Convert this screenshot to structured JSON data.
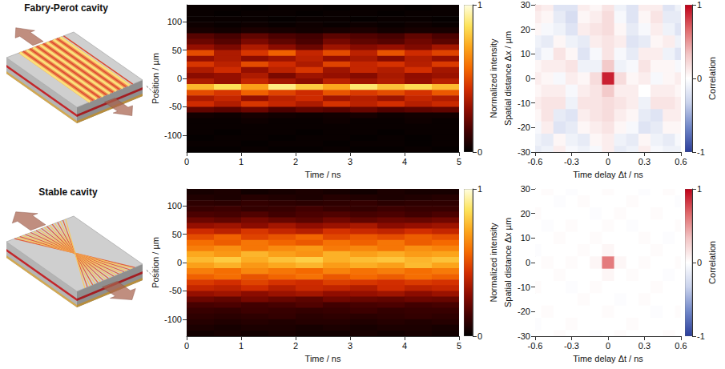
{
  "diagrams": [
    {
      "title": "Fabry-Perot cavity"
    },
    {
      "title": "Stable cavity"
    }
  ],
  "chart_data": [
    {
      "type": "heatmap",
      "x_label": "Time / ns",
      "y_label": "Position / µm",
      "xlim": [
        0,
        5
      ],
      "xticks": [
        0,
        1,
        2,
        3,
        4,
        5
      ],
      "ylim": [
        -130,
        130
      ],
      "yticks": [
        -100,
        -50,
        0,
        50,
        100
      ],
      "colorbar_label": "Normalized intensity",
      "colorbar_lim": [
        0,
        1
      ],
      "colorbar_ticks": [
        0,
        1
      ],
      "x": [
        0.25,
        0.75,
        1.25,
        1.75,
        2.25,
        2.75,
        3.25,
        3.75,
        4.25,
        4.75
      ],
      "y": [
        125,
        115,
        105,
        95,
        85,
        75,
        65,
        55,
        45,
        35,
        25,
        15,
        5,
        -5,
        -15,
        -25,
        -35,
        -45,
        -55,
        -65,
        -75,
        -85,
        -95,
        -105,
        -115,
        -125
      ],
      "z": [
        [
          0.02,
          0.02,
          0.01,
          0.02,
          0.02,
          0.01,
          0.02,
          0.02,
          0.01,
          0.02
        ],
        [
          0.02,
          0.01,
          0.02,
          0.02,
          0.01,
          0.02,
          0.02,
          0.01,
          0.02,
          0.02
        ],
        [
          0.02,
          0.02,
          0.02,
          0.01,
          0.02,
          0.02,
          0.01,
          0.02,
          0.02,
          0.01
        ],
        [
          0.03,
          0.02,
          0.03,
          0.02,
          0.03,
          0.02,
          0.03,
          0.02,
          0.03,
          0.02
        ],
        [
          0.05,
          0.04,
          0.06,
          0.05,
          0.04,
          0.05,
          0.06,
          0.04,
          0.05,
          0.05
        ],
        [
          0.18,
          0.15,
          0.2,
          0.16,
          0.14,
          0.19,
          0.17,
          0.15,
          0.2,
          0.16
        ],
        [
          0.22,
          0.18,
          0.25,
          0.2,
          0.16,
          0.24,
          0.2,
          0.18,
          0.23,
          0.19
        ],
        [
          0.3,
          0.25,
          0.35,
          0.28,
          0.22,
          0.32,
          0.27,
          0.3,
          0.26,
          0.33
        ],
        [
          0.5,
          0.35,
          0.45,
          0.55,
          0.4,
          0.5,
          0.38,
          0.52,
          0.42,
          0.48
        ],
        [
          0.3,
          0.35,
          0.28,
          0.32,
          0.38,
          0.3,
          0.34,
          0.27,
          0.36,
          0.3
        ],
        [
          0.45,
          0.38,
          0.5,
          0.42,
          0.35,
          0.48,
          0.4,
          0.44,
          0.37,
          0.46
        ],
        [
          0.35,
          0.42,
          0.3,
          0.38,
          0.45,
          0.32,
          0.4,
          0.36,
          0.43,
          0.33
        ],
        [
          0.28,
          0.3,
          0.35,
          0.25,
          0.32,
          0.3,
          0.27,
          0.34,
          0.29,
          0.31
        ],
        [
          0.35,
          0.3,
          0.4,
          0.33,
          0.28,
          0.38,
          0.32,
          0.36,
          0.3,
          0.37
        ],
        [
          0.75,
          0.85,
          0.7,
          0.9,
          0.8,
          0.72,
          0.88,
          0.78,
          0.84,
          0.76
        ],
        [
          0.5,
          0.45,
          0.55,
          0.48,
          0.42,
          0.52,
          0.46,
          0.5,
          0.44,
          0.53
        ],
        [
          0.35,
          0.4,
          0.3,
          0.38,
          0.42,
          0.33,
          0.37,
          0.32,
          0.4,
          0.36
        ],
        [
          0.42,
          0.36,
          0.45,
          0.4,
          0.35,
          0.44,
          0.38,
          0.43,
          0.37,
          0.41
        ],
        [
          0.2,
          0.18,
          0.22,
          0.16,
          0.2,
          0.18,
          0.21,
          0.17,
          0.19,
          0.2
        ],
        [
          0.04,
          0.03,
          0.05,
          0.04,
          0.03,
          0.04,
          0.05,
          0.03,
          0.04,
          0.04
        ],
        [
          0.02,
          0.02,
          0.03,
          0.02,
          0.02,
          0.03,
          0.02,
          0.02,
          0.03,
          0.02
        ],
        [
          0.02,
          0.02,
          0.02,
          0.02,
          0.02,
          0.02,
          0.02,
          0.02,
          0.02,
          0.02
        ],
        [
          0.02,
          0.01,
          0.02,
          0.02,
          0.01,
          0.02,
          0.02,
          0.01,
          0.02,
          0.02
        ],
        [
          0.01,
          0.02,
          0.02,
          0.01,
          0.02,
          0.02,
          0.01,
          0.02,
          0.01,
          0.02
        ],
        [
          0.02,
          0.02,
          0.01,
          0.02,
          0.02,
          0.01,
          0.02,
          0.02,
          0.01,
          0.02
        ],
        [
          0.01,
          0.01,
          0.02,
          0.01,
          0.01,
          0.02,
          0.01,
          0.01,
          0.02,
          0.01
        ]
      ]
    },
    {
      "type": "heatmap",
      "x_label": "Time delay Δt / ns",
      "y_label": "Spatial distance Δx / µm",
      "xlim": [
        -0.6,
        0.6
      ],
      "xticks": [
        -0.6,
        -0.3,
        0,
        0.3,
        0.6
      ],
      "ylim": [
        -30,
        30
      ],
      "yticks": [
        -30,
        -20,
        -10,
        0,
        10,
        20,
        30
      ],
      "colorbar_label": "Correlation",
      "colorbar_lim": [
        -1,
        1
      ],
      "colorbar_ticks": [
        -1,
        0,
        1
      ],
      "x": [
        -0.6,
        -0.5,
        -0.4,
        -0.3,
        -0.2,
        -0.1,
        0,
        0.1,
        0.2,
        0.3,
        0.4,
        0.5,
        0.6
      ],
      "y": [
        30,
        25,
        20,
        15,
        10,
        5,
        0,
        -5,
        -10,
        -15,
        -20,
        -25,
        -30
      ],
      "z": [
        [
          0.15,
          0.1,
          -0.2,
          -0.2,
          0.1,
          0.05,
          0.15,
          -0.1,
          -0.2,
          0.1,
          0.1,
          -0.2,
          -0.1
        ],
        [
          0.1,
          0.05,
          -0.15,
          -0.25,
          0.05,
          0.1,
          0.2,
          -0.05,
          -0.2,
          0.05,
          0.15,
          -0.15,
          -0.15
        ],
        [
          0.05,
          -0.05,
          -0.1,
          -0.2,
          0.1,
          0.15,
          0.2,
          0.05,
          -0.15,
          -0.05,
          0.1,
          -0.1,
          -0.2
        ],
        [
          -0.1,
          -0.15,
          0.05,
          -0.1,
          -0.15,
          0.1,
          0.15,
          0.1,
          -0.2,
          -0.15,
          0.05,
          0.1,
          -0.1
        ],
        [
          -0.15,
          -0.05,
          0.15,
          0.05,
          -0.2,
          -0.05,
          0.15,
          -0.05,
          -0.15,
          0.1,
          0.1,
          -0.1,
          -0.2
        ],
        [
          0.05,
          0.1,
          0.1,
          0.15,
          -0.1,
          -0.1,
          0.3,
          -0.1,
          -0.05,
          0.15,
          0.05,
          0.05,
          -0.05
        ],
        [
          0.1,
          0.05,
          -0.05,
          0.1,
          0.05,
          0.2,
          0.9,
          0.2,
          0.05,
          0.1,
          -0.05,
          0.05,
          0.1
        ],
        [
          0.05,
          0.1,
          0.1,
          -0.05,
          0.1,
          0.15,
          0.3,
          0.1,
          0.1,
          0.0,
          0.1,
          0.1,
          0.05
        ],
        [
          0.1,
          0.15,
          0.15,
          -0.1,
          0.15,
          0.15,
          0.2,
          0.15,
          0.1,
          -0.1,
          0.15,
          0.15,
          0.1
        ],
        [
          0.05,
          0.15,
          -0.15,
          -0.2,
          0.1,
          0.15,
          0.2,
          0.1,
          0.05,
          -0.15,
          -0.2,
          0.1,
          0.1
        ],
        [
          -0.05,
          0.1,
          -0.2,
          -0.15,
          0.05,
          0.1,
          0.15,
          0.05,
          -0.05,
          -0.2,
          -0.15,
          0.05,
          0.05
        ],
        [
          -0.1,
          -0.15,
          0.05,
          -0.1,
          -0.15,
          0.05,
          0.1,
          -0.1,
          -0.15,
          0.05,
          -0.1,
          -0.15,
          -0.05
        ],
        [
          -0.15,
          -0.1,
          0.1,
          -0.05,
          -0.1,
          -0.05,
          0.1,
          -0.15,
          -0.1,
          0.1,
          -0.05,
          -0.1,
          -0.1
        ]
      ]
    },
    {
      "type": "heatmap",
      "x_label": "Time / ns",
      "y_label": "Position / µm",
      "xlim": [
        0,
        5
      ],
      "xticks": [
        0,
        1,
        2,
        3,
        4,
        5
      ],
      "ylim": [
        -130,
        130
      ],
      "yticks": [
        -100,
        -50,
        0,
        50,
        100
      ],
      "colorbar_label": "Normalized intensity",
      "colorbar_lim": [
        0,
        1
      ],
      "colorbar_ticks": [
        0,
        1
      ],
      "x": [
        0.25,
        0.75,
        1.25,
        1.75,
        2.25,
        2.75,
        3.25,
        3.75,
        4.25,
        4.75
      ],
      "y": [
        125,
        115,
        105,
        95,
        85,
        75,
        65,
        55,
        45,
        35,
        25,
        15,
        5,
        -5,
        -15,
        -25,
        -35,
        -45,
        -55,
        -65,
        -75,
        -85,
        -95,
        -105,
        -115,
        -125
      ],
      "z": [
        [
          0.05,
          0.06,
          0.04,
          0.05,
          0.06,
          0.05,
          0.04,
          0.06,
          0.05,
          0.05
        ],
        [
          0.07,
          0.06,
          0.08,
          0.07,
          0.06,
          0.08,
          0.07,
          0.06,
          0.07,
          0.08
        ],
        [
          0.1,
          0.09,
          0.11,
          0.1,
          0.09,
          0.1,
          0.11,
          0.09,
          0.1,
          0.1
        ],
        [
          0.12,
          0.13,
          0.11,
          0.12,
          0.14,
          0.12,
          0.11,
          0.13,
          0.12,
          0.12
        ],
        [
          0.16,
          0.15,
          0.17,
          0.14,
          0.16,
          0.17,
          0.15,
          0.16,
          0.14,
          0.16
        ],
        [
          0.22,
          0.2,
          0.24,
          0.21,
          0.19,
          0.23,
          0.2,
          0.22,
          0.21,
          0.23
        ],
        [
          0.3,
          0.32,
          0.28,
          0.33,
          0.29,
          0.31,
          0.34,
          0.28,
          0.3,
          0.32
        ],
        [
          0.42,
          0.38,
          0.45,
          0.4,
          0.37,
          0.44,
          0.41,
          0.39,
          0.43,
          0.4
        ],
        [
          0.5,
          0.55,
          0.48,
          0.52,
          0.56,
          0.49,
          0.53,
          0.5,
          0.54,
          0.51
        ],
        [
          0.58,
          0.54,
          0.6,
          0.56,
          0.53,
          0.59,
          0.55,
          0.6,
          0.54,
          0.57
        ],
        [
          0.62,
          0.66,
          0.6,
          0.65,
          0.68,
          0.61,
          0.64,
          0.6,
          0.66,
          0.63
        ],
        [
          0.72,
          0.68,
          0.75,
          0.7,
          0.67,
          0.74,
          0.7,
          0.73,
          0.69,
          0.71
        ],
        [
          0.76,
          0.8,
          0.73,
          0.78,
          0.81,
          0.74,
          0.77,
          0.79,
          0.75,
          0.78
        ],
        [
          0.7,
          0.74,
          0.68,
          0.72,
          0.75,
          0.69,
          0.73,
          0.7,
          0.76,
          0.71
        ],
        [
          0.62,
          0.58,
          0.64,
          0.6,
          0.57,
          0.63,
          0.59,
          0.62,
          0.58,
          0.61
        ],
        [
          0.55,
          0.58,
          0.52,
          0.56,
          0.59,
          0.53,
          0.57,
          0.54,
          0.58,
          0.55
        ],
        [
          0.46,
          0.43,
          0.48,
          0.44,
          0.42,
          0.47,
          0.45,
          0.43,
          0.46,
          0.44
        ],
        [
          0.4,
          0.38,
          0.42,
          0.37,
          0.41,
          0.39,
          0.36,
          0.42,
          0.38,
          0.4
        ],
        [
          0.3,
          0.32,
          0.28,
          0.31,
          0.33,
          0.29,
          0.3,
          0.32,
          0.28,
          0.31
        ],
        [
          0.22,
          0.2,
          0.24,
          0.21,
          0.19,
          0.23,
          0.21,
          0.2,
          0.22,
          0.21
        ],
        [
          0.15,
          0.16,
          0.14,
          0.15,
          0.17,
          0.14,
          0.15,
          0.16,
          0.14,
          0.15
        ],
        [
          0.12,
          0.11,
          0.13,
          0.12,
          0.11,
          0.12,
          0.13,
          0.11,
          0.12,
          0.12
        ],
        [
          0.1,
          0.09,
          0.1,
          0.11,
          0.09,
          0.1,
          0.09,
          0.1,
          0.11,
          0.1
        ],
        [
          0.08,
          0.07,
          0.08,
          0.07,
          0.08,
          0.08,
          0.07,
          0.08,
          0.07,
          0.08
        ],
        [
          0.06,
          0.05,
          0.06,
          0.06,
          0.05,
          0.06,
          0.05,
          0.06,
          0.06,
          0.05
        ],
        [
          0.04,
          0.05,
          0.04,
          0.05,
          0.04,
          0.04,
          0.05,
          0.04,
          0.05,
          0.04
        ]
      ]
    },
    {
      "type": "heatmap",
      "x_label": "Time delay Δt / ns",
      "y_label": "Spatial distance Δx µm",
      "xlim": [
        -0.6,
        0.6
      ],
      "xticks": [
        -0.6,
        -0.3,
        0,
        0.3,
        0.6
      ],
      "ylim": [
        -30,
        30
      ],
      "yticks": [
        -30,
        -20,
        -10,
        0,
        10,
        20,
        30
      ],
      "colorbar_label": "Correlation",
      "colorbar_lim": [
        -1,
        1
      ],
      "colorbar_ticks": [
        -1,
        0,
        1
      ],
      "x": [
        -0.6,
        -0.5,
        -0.4,
        -0.3,
        -0.2,
        -0.1,
        0,
        0.1,
        0.2,
        0.3,
        0.4,
        0.5,
        0.6
      ],
      "y": [
        30,
        25,
        20,
        15,
        10,
        5,
        0,
        -5,
        -10,
        -15,
        -20,
        -25,
        -30
      ],
      "z": [
        [
          0,
          0.02,
          0,
          -0.02,
          0,
          0,
          0.02,
          0,
          0,
          -0.02,
          0,
          0.02,
          0
        ],
        [
          0,
          0,
          -0.02,
          0,
          0.02,
          0,
          0,
          0,
          0.02,
          0,
          0,
          0,
          -0.02
        ],
        [
          0.02,
          0,
          0,
          0,
          0,
          -0.02,
          0,
          0.02,
          0,
          0,
          0.02,
          0,
          0
        ],
        [
          0,
          -0.02,
          0,
          0.02,
          0,
          0,
          0.02,
          0,
          -0.02,
          0,
          0,
          0,
          0.02
        ],
        [
          0,
          0,
          0.02,
          0,
          0,
          0.02,
          0,
          0,
          0,
          0.02,
          0,
          -0.02,
          0
        ],
        [
          -0.02,
          0,
          0,
          0,
          0.02,
          0,
          0.05,
          0,
          0,
          0,
          0.02,
          0,
          0
        ],
        [
          0,
          0.02,
          0,
          0.02,
          0,
          0.05,
          0.6,
          0.05,
          0,
          0.02,
          0,
          0,
          0.02
        ],
        [
          0,
          0,
          0.02,
          0,
          0,
          0,
          0.05,
          0,
          0.02,
          0,
          0,
          -0.02,
          0
        ],
        [
          0.02,
          0,
          0,
          -0.02,
          0,
          0.02,
          0,
          0,
          0,
          0,
          0.02,
          0,
          0
        ],
        [
          0,
          0,
          0,
          0,
          0.02,
          0,
          0,
          -0.02,
          0,
          0.02,
          0,
          0,
          0
        ],
        [
          0,
          0.02,
          0,
          0,
          0,
          0,
          0.02,
          0,
          0,
          0,
          -0.02,
          0,
          0.02
        ],
        [
          -0.02,
          0,
          0,
          0.02,
          0,
          0,
          0,
          0,
          0.02,
          0,
          0,
          0,
          0
        ],
        [
          0,
          0,
          0.02,
          0,
          0,
          -0.02,
          0,
          0.02,
          0,
          0,
          0,
          0.02,
          0
        ]
      ]
    }
  ]
}
